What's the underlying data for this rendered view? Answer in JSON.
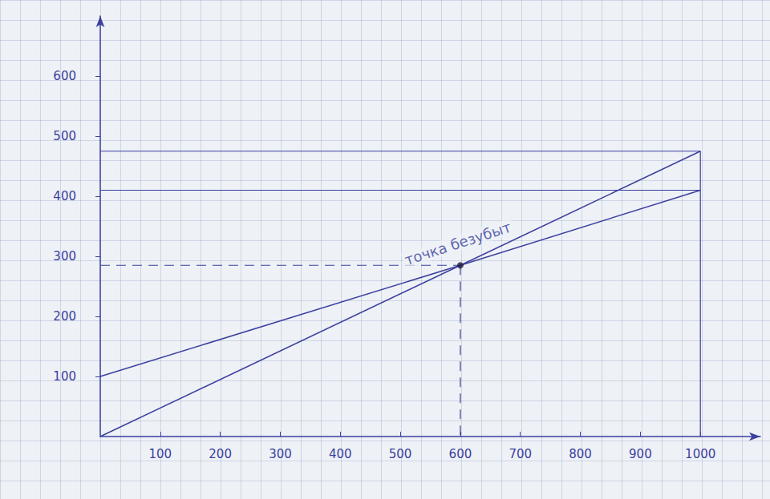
{
  "chart_data": {
    "type": "line",
    "x": [
      0,
      600,
      1000
    ],
    "series": [
      {
        "color": "#3b3f9e",
        "values": [
          0,
          285,
          475
        ]
      },
      {
        "color": "#3b3f9e",
        "values": [
          100,
          285,
          410
        ]
      }
    ],
    "annotations": [
      {
        "text": "точка безубыт",
        "x": 600,
        "y": 285
      }
    ],
    "xlim": [
      0,
      1100
    ],
    "xticks": [
      100,
      200,
      300,
      400,
      500,
      600,
      700,
      800,
      900,
      1000
    ],
    "ylim": [
      0,
      700
    ],
    "yticks": [
      100,
      200,
      300,
      400,
      500,
      600
    ],
    "grid": false
  }
}
